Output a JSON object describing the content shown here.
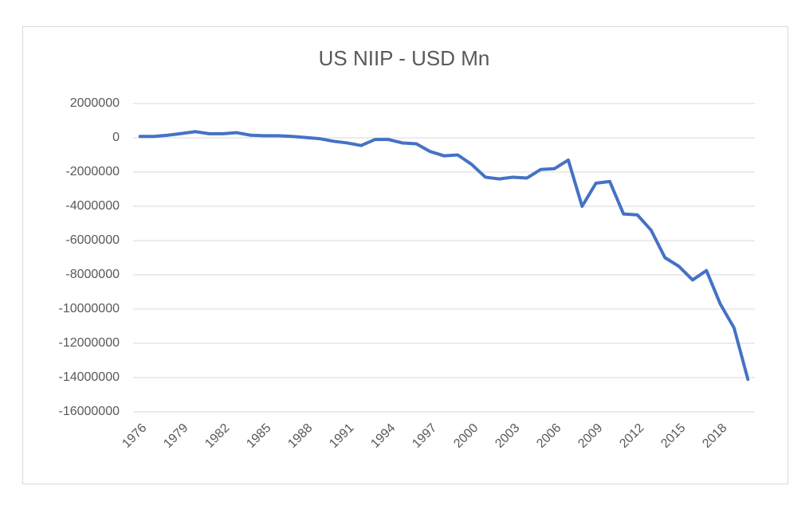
{
  "chart_data": {
    "type": "line",
    "title": "US NIIP - USD Mn",
    "categories": [
      "1976",
      null,
      null,
      "1979",
      null,
      null,
      "1982",
      null,
      null,
      "1985",
      null,
      null,
      "1988",
      null,
      null,
      "1991",
      null,
      null,
      "1994",
      null,
      null,
      "1997",
      null,
      null,
      "2000",
      null,
      null,
      "2003",
      null,
      null,
      "2006",
      null,
      null,
      "2009",
      null,
      null,
      "2012",
      null,
      null,
      "2015",
      null,
      null,
      "2018",
      null,
      null
    ],
    "series": [
      {
        "name": "US NIIP",
        "color": "#4472c4",
        "values": [
          80000,
          80000,
          150000,
          250000,
          360000,
          240000,
          240000,
          300000,
          150000,
          120000,
          120000,
          80000,
          20000,
          -50000,
          -200000,
          -300000,
          -450000,
          -100000,
          -100000,
          -300000,
          -350000,
          -800000,
          -1050000,
          -1000000,
          -1550000,
          -2300000,
          -2400000,
          -2300000,
          -2350000,
          -1850000,
          -1800000,
          -1300000,
          -4000000,
          -2650000,
          -2550000,
          -4450000,
          -4500000,
          -5400000,
          -7000000,
          -7500000,
          -8300000,
          -7750000,
          -9700000,
          -11100000,
          -14100000
        ]
      }
    ],
    "ylim": [
      -16000000,
      2000000
    ],
    "yticks": [
      -16000000,
      -14000000,
      -12000000,
      -10000000,
      -8000000,
      -6000000,
      -4000000,
      -2000000,
      0,
      2000000
    ],
    "grid": true
  }
}
